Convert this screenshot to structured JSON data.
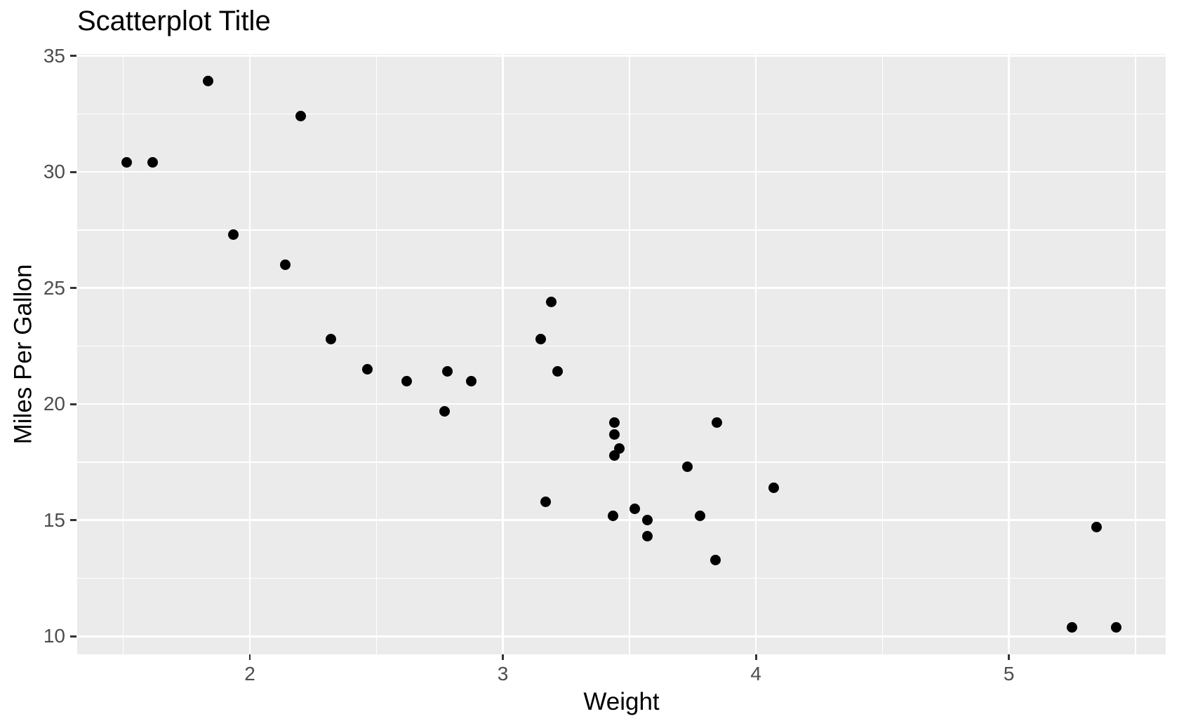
{
  "chart_data": {
    "type": "scatter",
    "title": "Scatterplot Title",
    "xlabel": "Weight",
    "ylabel": "Miles Per Gallon",
    "xlim": [
      1.3174,
      5.6196
    ],
    "ylim": [
      9.2225,
      35.0775
    ],
    "x_ticks": [
      2,
      3,
      4,
      5
    ],
    "y_ticks": [
      10,
      15,
      20,
      25,
      30,
      35
    ],
    "x_minor_ticks": [
      1.5,
      2.5,
      3.5,
      4.5,
      5.5
    ],
    "y_minor_ticks": [
      12.5,
      17.5,
      22.5,
      27.5,
      32.5
    ],
    "grid": "major-and-minor",
    "legend": "none",
    "series": [
      {
        "name": "points",
        "points": [
          [
            2.62,
            21.0
          ],
          [
            2.875,
            21.0
          ],
          [
            2.32,
            22.8
          ],
          [
            3.215,
            21.4
          ],
          [
            3.44,
            18.7
          ],
          [
            3.46,
            18.1
          ],
          [
            3.57,
            14.3
          ],
          [
            3.19,
            24.4
          ],
          [
            3.15,
            22.8
          ],
          [
            3.44,
            19.2
          ],
          [
            3.44,
            17.8
          ],
          [
            4.07,
            16.4
          ],
          [
            3.73,
            17.3
          ],
          [
            3.78,
            15.2
          ],
          [
            5.25,
            10.4
          ],
          [
            5.424,
            10.4
          ],
          [
            5.345,
            14.7
          ],
          [
            2.2,
            32.4
          ],
          [
            1.615,
            30.4
          ],
          [
            1.835,
            33.9
          ],
          [
            2.465,
            21.5
          ],
          [
            3.52,
            15.5
          ],
          [
            3.435,
            15.2
          ],
          [
            3.84,
            13.3
          ],
          [
            3.845,
            19.2
          ],
          [
            1.935,
            27.3
          ],
          [
            2.14,
            26.0
          ],
          [
            1.513,
            30.4
          ],
          [
            3.17,
            15.8
          ],
          [
            2.77,
            19.7
          ],
          [
            3.57,
            15.0
          ],
          [
            2.78,
            21.4
          ]
        ]
      }
    ]
  },
  "colors": {
    "page_bg": "#FFFFFF",
    "panel_bg": "#EBEBEB",
    "gridline": "#FFFFFF",
    "point": "#000000",
    "tick_mark": "#333333",
    "tick_label": "#4D4D4D",
    "title_text": "#000000"
  }
}
